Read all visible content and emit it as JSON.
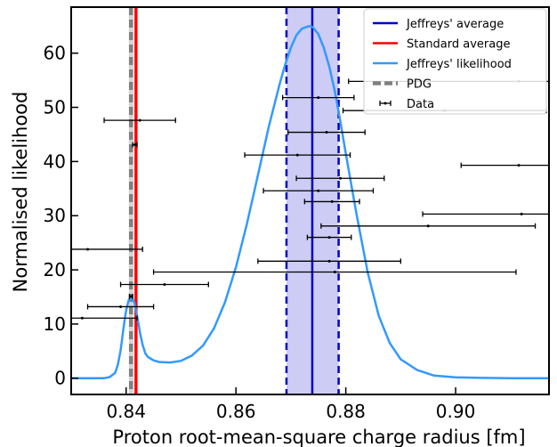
{
  "chart_data": {
    "type": "line",
    "xlabel": "Proton root-mean-square charge radius [fm]",
    "ylabel": "Normalised likelihood",
    "xlim": [
      0.83,
      0.917
    ],
    "ylim": [
      -3.0,
      68.5
    ],
    "x_ticks": [
      0.84,
      0.86,
      0.88,
      0.9
    ],
    "x_tick_labels": [
      "0.84",
      "0.86",
      "0.88",
      "0.90"
    ],
    "y_ticks": [
      0,
      10,
      20,
      30,
      40,
      50,
      60
    ],
    "y_tick_labels": [
      "0",
      "10",
      "20",
      "30",
      "40",
      "50",
      "60"
    ],
    "grid": false,
    "legend_position": "top-right",
    "legend": [
      {
        "label": "Jeffreys' average",
        "color": "#0000cc",
        "style": "line"
      },
      {
        "label": "Standard average",
        "color": "#ff0000",
        "style": "line"
      },
      {
        "label": "Jeffreys' likelihood",
        "color": "#3399ff",
        "style": "line"
      },
      {
        "label": "PDG",
        "color": "#808080",
        "style": "dashed"
      },
      {
        "label": "Data",
        "color": "#000000",
        "style": "errorbar"
      }
    ],
    "series": [
      {
        "name": "Jeffreys' likelihood",
        "color": "#3399ff",
        "x": [
          0.83,
          0.834,
          0.836,
          0.837,
          0.838,
          0.8385,
          0.839,
          0.8395,
          0.84,
          0.8405,
          0.841,
          0.8415,
          0.842,
          0.8425,
          0.843,
          0.8435,
          0.844,
          0.845,
          0.846,
          0.848,
          0.85,
          0.852,
          0.854,
          0.856,
          0.858,
          0.86,
          0.862,
          0.864,
          0.866,
          0.868,
          0.869,
          0.87,
          0.871,
          0.872,
          0.873,
          0.8735,
          0.874,
          0.875,
          0.876,
          0.877,
          0.878,
          0.879,
          0.88,
          0.882,
          0.884,
          0.886,
          0.888,
          0.89,
          0.893,
          0.896,
          0.9,
          0.905,
          0.91,
          0.917
        ],
        "y": [
          0.0,
          0.0,
          0.0,
          0.2,
          1.0,
          2.5,
          5.2,
          9.0,
          12.5,
          14.5,
          14.9,
          14.0,
          11.5,
          8.5,
          6.2,
          4.6,
          3.9,
          3.3,
          3.0,
          2.9,
          3.2,
          4.2,
          6.0,
          9.2,
          14.0,
          20.5,
          28.5,
          37.5,
          46.5,
          54.5,
          58.0,
          61.0,
          63.3,
          64.5,
          64.9,
          65.0,
          64.8,
          63.5,
          61.0,
          57.5,
          53.0,
          47.5,
          41.5,
          30.0,
          19.5,
          11.5,
          6.5,
          3.5,
          1.5,
          0.5,
          0.15,
          0.05,
          0.01,
          0.0
        ]
      }
    ],
    "jeffreys_average": {
      "value": 0.8739,
      "band": [
        0.8692,
        0.8787
      ],
      "color": "#0000cc"
    },
    "standard_average": {
      "value": 0.8418,
      "color": "#ff0000"
    },
    "pdg": {
      "value": 0.8409,
      "band_halfwidth": 0.0004,
      "color": "#808080"
    },
    "data_points": [
      {
        "x": 0.9115,
        "xerr": 0.031,
        "y": 54.8
      },
      {
        "x": 0.875,
        "xerr": 0.0065,
        "y": 51.8
      },
      {
        "x": 0.898,
        "xerr": 0.0185,
        "y": 49.4
      },
      {
        "x": 0.8425,
        "xerr": 0.0065,
        "y": 47.6
      },
      {
        "x": 0.8765,
        "xerr": 0.007,
        "y": 45.4
      },
      {
        "x": 0.8416,
        "xerr": 0.0004,
        "y": 43.1
      },
      {
        "x": 0.8712,
        "xerr": 0.0096,
        "y": 41.2
      },
      {
        "x": 0.9115,
        "xerr": 0.0105,
        "y": 39.3
      },
      {
        "x": 0.879,
        "xerr": 0.008,
        "y": 36.9
      },
      {
        "x": 0.875,
        "xerr": 0.01,
        "y": 34.6
      },
      {
        "x": 0.8775,
        "xerr": 0.005,
        "y": 32.6
      },
      {
        "x": 0.912,
        "xerr": 0.018,
        "y": 30.3
      },
      {
        "x": 0.895,
        "xerr": 0.0195,
        "y": 28.1
      },
      {
        "x": 0.877,
        "xerr": 0.004,
        "y": 26.0
      },
      {
        "x": 0.833,
        "xerr": 0.01,
        "y": 23.8
      },
      {
        "x": 0.877,
        "xerr": 0.013,
        "y": 21.6
      },
      {
        "x": 0.878,
        "xerr": 0.033,
        "y": 19.6
      },
      {
        "x": 0.847,
        "xerr": 0.008,
        "y": 17.3
      },
      {
        "x": 0.8409,
        "xerr": 0.0003,
        "y": 15.1
      },
      {
        "x": 0.839,
        "xerr": 0.006,
        "y": 13.2
      },
      {
        "x": 0.832,
        "xerr": 0.01,
        "y": 11.1
      }
    ]
  }
}
